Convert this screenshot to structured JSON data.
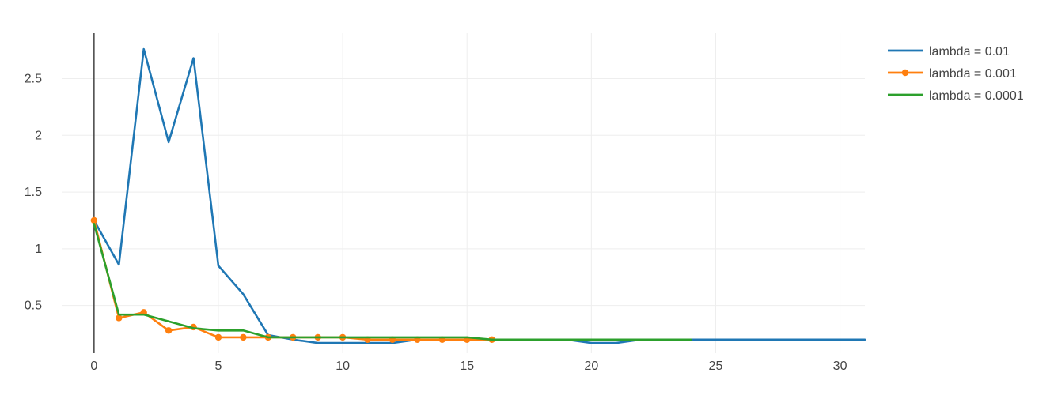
{
  "chart_data": {
    "type": "line",
    "title": "",
    "xlabel": "",
    "ylabel": "",
    "xlim": [
      -1.3,
      31
    ],
    "ylim": [
      0.08,
      2.9
    ],
    "x_ticks": [
      0,
      5,
      10,
      15,
      20,
      25,
      30
    ],
    "y_ticks": [
      0.5,
      1,
      1.5,
      2,
      2.5
    ],
    "x_tick_labels": [
      "0",
      "5",
      "10",
      "15",
      "20",
      "25",
      "30"
    ],
    "y_tick_labels": [
      "0.5",
      "1",
      "1.5",
      "2",
      "2.5"
    ],
    "grid": true,
    "legend_position": "top-right",
    "series": [
      {
        "name": "lambda = 0.01",
        "color": "#1f77b4",
        "markers": false,
        "x": [
          0,
          1,
          2,
          3,
          4,
          5,
          6,
          7,
          8,
          9,
          10,
          11,
          12,
          13,
          14,
          15,
          16,
          17,
          18,
          19,
          20,
          21,
          22,
          23,
          24,
          25,
          26,
          27,
          28,
          29,
          30,
          31
        ],
        "y": [
          1.25,
          0.86,
          2.76,
          1.94,
          2.68,
          0.85,
          0.6,
          0.24,
          0.2,
          0.17,
          0.17,
          0.17,
          0.17,
          0.2,
          0.2,
          0.2,
          0.2,
          0.2,
          0.2,
          0.2,
          0.17,
          0.17,
          0.2,
          0.2,
          0.2,
          0.2,
          0.2,
          0.2,
          0.2,
          0.2,
          0.2,
          0.2
        ]
      },
      {
        "name": "lambda = 0.001",
        "color": "#ff7f0e",
        "markers": true,
        "x": [
          0,
          1,
          2,
          3,
          4,
          5,
          6,
          7,
          8,
          9,
          10,
          11,
          12,
          13,
          14,
          15,
          16
        ],
        "y": [
          1.25,
          0.39,
          0.44,
          0.28,
          0.31,
          0.22,
          0.22,
          0.22,
          0.22,
          0.22,
          0.22,
          0.2,
          0.2,
          0.2,
          0.2,
          0.2,
          0.2
        ]
      },
      {
        "name": "lambda = 0.0001",
        "color": "#2ca02c",
        "markers": false,
        "x": [
          0,
          1,
          2,
          3,
          4,
          5,
          6,
          7,
          8,
          9,
          10,
          11,
          12,
          13,
          14,
          15,
          16,
          17,
          18,
          19,
          20,
          21,
          22,
          23,
          24
        ],
        "y": [
          1.22,
          0.42,
          0.42,
          0.36,
          0.3,
          0.28,
          0.28,
          0.22,
          0.22,
          0.22,
          0.22,
          0.22,
          0.22,
          0.22,
          0.22,
          0.22,
          0.2,
          0.2,
          0.2,
          0.2,
          0.2,
          0.2,
          0.2,
          0.2,
          0.2
        ]
      }
    ]
  }
}
